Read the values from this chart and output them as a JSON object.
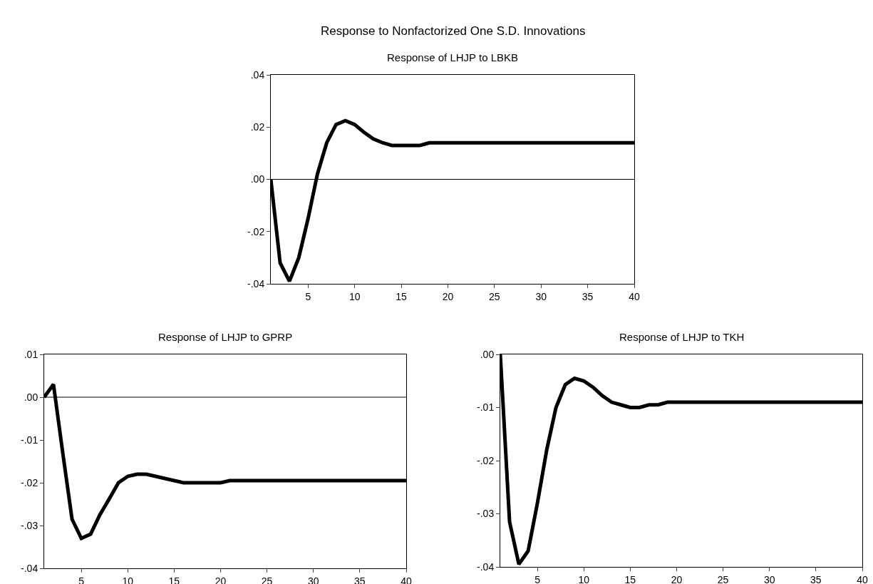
{
  "chart_data": [
    {
      "type": "line",
      "title": "Response to Nonfactorized One S.D. Innovations",
      "subtitle": "Response of LHJP to LBKB",
      "x": [
        1,
        2,
        3,
        4,
        5,
        6,
        7,
        8,
        9,
        10,
        11,
        12,
        13,
        14,
        15,
        16,
        17,
        18,
        19,
        20,
        21,
        22,
        23,
        24,
        25,
        26,
        27,
        28,
        29,
        30,
        31,
        32,
        33,
        34,
        35,
        36,
        37,
        38,
        39,
        40
      ],
      "series": [
        {
          "color": "#000000",
          "values": [
            0,
            -0.032,
            -0.039,
            -0.03,
            -0.015,
            0.002,
            0.014,
            0.021,
            0.0225,
            0.021,
            0.018,
            0.0155,
            0.014,
            0.013,
            0.013,
            0.013,
            0.013,
            0.014,
            0.014,
            0.014,
            0.014,
            0.014,
            0.014,
            0.014,
            0.014,
            0.014,
            0.014,
            0.014,
            0.014,
            0.014,
            0.014,
            0.014,
            0.014,
            0.014,
            0.014,
            0.014,
            0.014,
            0.014,
            0.014,
            0.014
          ]
        }
      ],
      "xlim": [
        1,
        40
      ],
      "xticks": [
        5,
        10,
        15,
        20,
        25,
        30,
        35,
        40
      ],
      "ylim": [
        -0.04,
        0.04
      ],
      "yticks": [
        {
          "value": -0.04,
          "label": "-.04"
        },
        {
          "value": -0.02,
          "label": "-.02"
        },
        {
          "value": 0,
          "label": ".00"
        },
        {
          "value": 0.02,
          "label": ".02"
        },
        {
          "value": 0.04,
          "label": ".04"
        }
      ],
      "ref_lines": [
        {
          "axis": "y",
          "value": 0
        }
      ],
      "grid": false
    },
    {
      "type": "line",
      "title": "Response of LHJP to GPRP",
      "x": [
        1,
        2,
        3,
        4,
        5,
        6,
        7,
        8,
        9,
        10,
        11,
        12,
        13,
        14,
        15,
        16,
        17,
        18,
        19,
        20,
        21,
        22,
        23,
        24,
        25,
        26,
        27,
        28,
        29,
        30,
        31,
        32,
        33,
        34,
        35,
        36,
        37,
        38,
        39,
        40
      ],
      "series": [
        {
          "color": "#000000",
          "values": [
            0,
            0.003,
            -0.013,
            -0.0285,
            -0.033,
            -0.032,
            -0.0275,
            -0.0238,
            -0.02,
            -0.0185,
            -0.018,
            -0.018,
            -0.0185,
            -0.019,
            -0.0195,
            -0.02,
            -0.02,
            -0.02,
            -0.02,
            -0.02,
            -0.0195,
            -0.0195,
            -0.0195,
            -0.0195,
            -0.0195,
            -0.0195,
            -0.0195,
            -0.0195,
            -0.0195,
            -0.0195,
            -0.0195,
            -0.0195,
            -0.0195,
            -0.0195,
            -0.0195,
            -0.0195,
            -0.0195,
            -0.0195,
            -0.0195,
            -0.0195
          ]
        }
      ],
      "xlim": [
        1,
        40
      ],
      "xticks": [
        5,
        10,
        15,
        20,
        25,
        30,
        35,
        40
      ],
      "ylim": [
        -0.04,
        0.01
      ],
      "yticks": [
        {
          "value": -0.04,
          "label": "-.04"
        },
        {
          "value": -0.03,
          "label": "-.03"
        },
        {
          "value": -0.02,
          "label": "-.02"
        },
        {
          "value": -0.01,
          "label": "-.01"
        },
        {
          "value": 0,
          "label": ".00"
        },
        {
          "value": 0.01,
          "label": ".01"
        }
      ],
      "ref_lines": [
        {
          "axis": "y",
          "value": 0
        }
      ],
      "grid": false
    },
    {
      "type": "line",
      "title": "Response of LHJP to TKH",
      "x": [
        1,
        2,
        3,
        4,
        5,
        6,
        7,
        8,
        9,
        10,
        11,
        12,
        13,
        14,
        15,
        16,
        17,
        18,
        19,
        20,
        21,
        22,
        23,
        24,
        25,
        26,
        27,
        28,
        29,
        30,
        31,
        32,
        33,
        34,
        35,
        36,
        37,
        38,
        39,
        40
      ],
      "series": [
        {
          "color": "#000000",
          "values": [
            0,
            -0.0315,
            -0.0395,
            -0.037,
            -0.028,
            -0.018,
            -0.01,
            -0.0057,
            -0.0045,
            -0.005,
            -0.0062,
            -0.0078,
            -0.009,
            -0.0095,
            -0.01,
            -0.01,
            -0.0095,
            -0.0095,
            -0.009,
            -0.009,
            -0.009,
            -0.009,
            -0.009,
            -0.009,
            -0.009,
            -0.009,
            -0.009,
            -0.009,
            -0.009,
            -0.009,
            -0.009,
            -0.009,
            -0.009,
            -0.009,
            -0.009,
            -0.009,
            -0.009,
            -0.009,
            -0.009,
            -0.009
          ]
        }
      ],
      "xlim": [
        1,
        40
      ],
      "xticks": [
        5,
        10,
        15,
        20,
        25,
        30,
        35,
        40
      ],
      "ylim": [
        -0.04,
        0
      ],
      "yticks": [
        {
          "value": -0.04,
          "label": "-.04"
        },
        {
          "value": -0.03,
          "label": "-.03"
        },
        {
          "value": -0.02,
          "label": "-.02"
        },
        {
          "value": -0.01,
          "label": "-.01"
        },
        {
          "value": 0,
          "label": ".00"
        }
      ],
      "grid": false
    }
  ]
}
